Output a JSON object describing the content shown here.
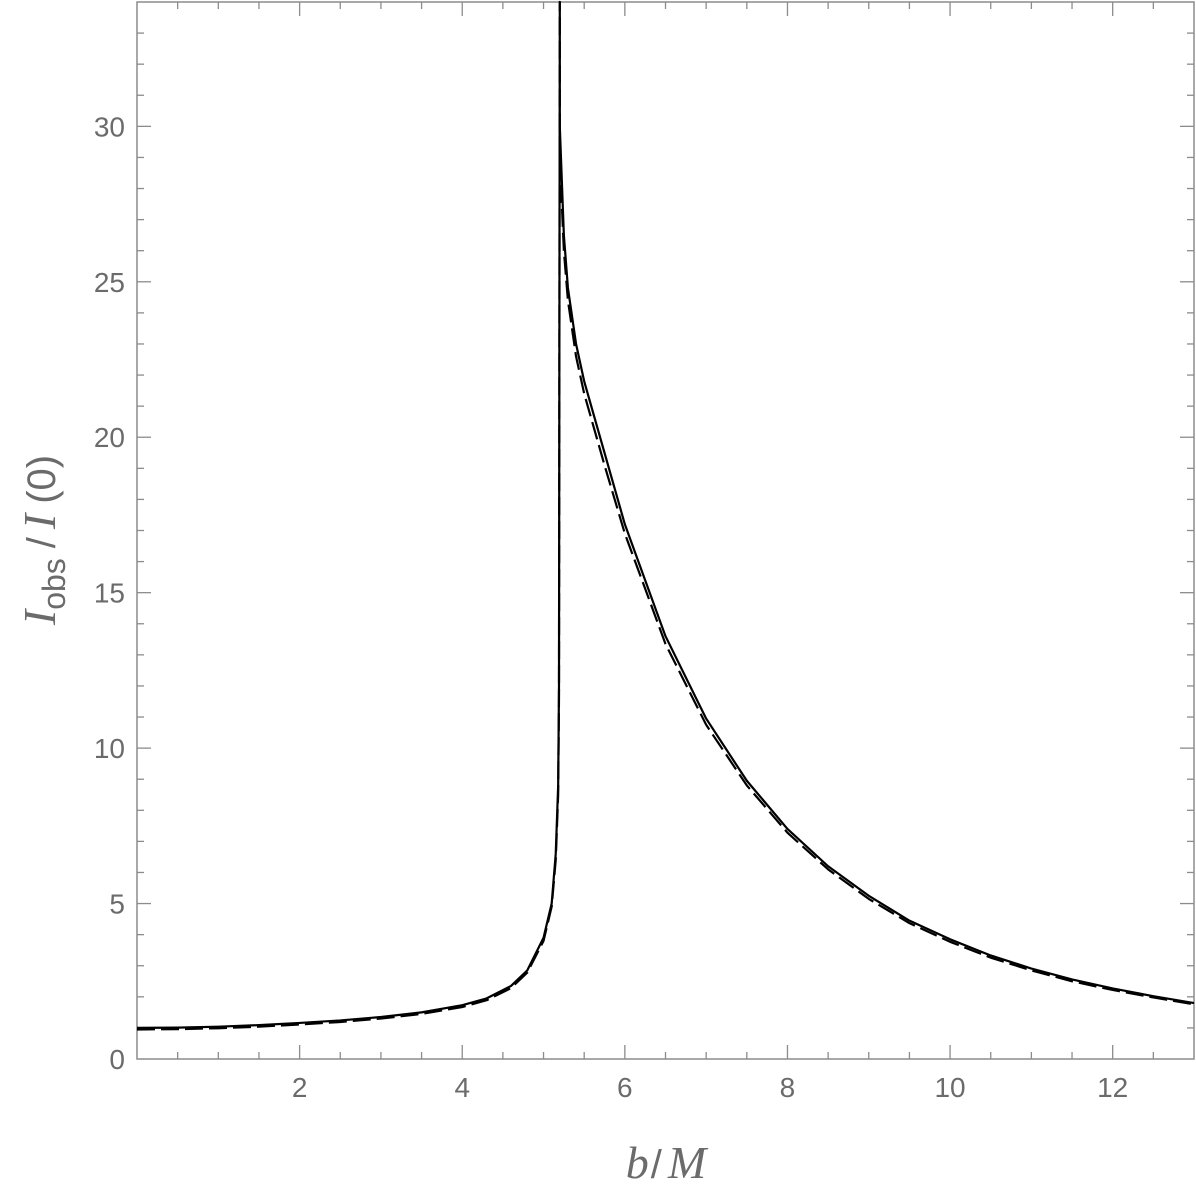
{
  "chart_data": {
    "type": "line",
    "xlabel": {
      "main": "b",
      "sep": "/",
      "unit": "M"
    },
    "ylabel": {
      "main": "I",
      "sub": "obs",
      "sep": "/",
      "norm": "I",
      "arg": "(0)"
    },
    "xlim": [
      0,
      13
    ],
    "ylim": [
      0,
      34
    ],
    "xticks": [
      2,
      4,
      6,
      8,
      10,
      12
    ],
    "yticks": [
      0,
      5,
      10,
      15,
      20,
      25,
      30
    ],
    "x_minor_step": 0.5,
    "y_minor_step": 1,
    "grid": false,
    "series": [
      {
        "style": "solid",
        "color": "#000000",
        "x": [
          0.0,
          0.5,
          1.0,
          1.5,
          2.0,
          2.5,
          3.0,
          3.5,
          4.0,
          4.3,
          4.6,
          4.8,
          5.0,
          5.1,
          5.15,
          5.18,
          5.19,
          5.2,
          5.2,
          5.25,
          5.3,
          5.4,
          5.5,
          5.75,
          6.0,
          6.5,
          7.0,
          7.5,
          8.0,
          8.5,
          9.0,
          9.5,
          10.0,
          10.5,
          11.0,
          11.5,
          12.0,
          12.5,
          13.0
        ],
        "y": [
          1.0,
          1.01,
          1.04,
          1.09,
          1.16,
          1.24,
          1.35,
          1.5,
          1.73,
          1.95,
          2.35,
          2.85,
          3.9,
          5.0,
          6.6,
          8.8,
          12.0,
          34.0,
          30.0,
          26.5,
          24.8,
          23.0,
          21.8,
          19.5,
          17.2,
          13.6,
          10.95,
          8.95,
          7.4,
          6.2,
          5.25,
          4.45,
          3.85,
          3.33,
          2.91,
          2.56,
          2.27,
          2.02,
          1.8
        ]
      },
      {
        "style": "dashed",
        "color": "#000000",
        "x": [
          0.0,
          0.5,
          1.0,
          1.5,
          2.0,
          2.5,
          3.0,
          3.5,
          4.0,
          4.3,
          4.6,
          4.8,
          5.0,
          5.1,
          5.15,
          5.18,
          5.19,
          5.2,
          5.2,
          5.25,
          5.3,
          5.4,
          5.5,
          5.75,
          6.0,
          6.5,
          7.0,
          7.5,
          8.0,
          8.5,
          9.0,
          9.5,
          10.0,
          10.5,
          11.0,
          11.5,
          12.0,
          12.5,
          13.0
        ],
        "y": [
          0.95,
          0.96,
          0.99,
          1.04,
          1.11,
          1.19,
          1.3,
          1.45,
          1.67,
          1.89,
          2.28,
          2.78,
          3.8,
          4.9,
          6.4,
          8.5,
          11.6,
          34.0,
          29.0,
          26.0,
          24.4,
          22.6,
          21.4,
          19.1,
          16.9,
          13.35,
          10.75,
          8.8,
          7.28,
          6.1,
          5.15,
          4.37,
          3.77,
          3.26,
          2.85,
          2.5,
          2.22,
          1.98,
          1.76
        ]
      }
    ]
  }
}
